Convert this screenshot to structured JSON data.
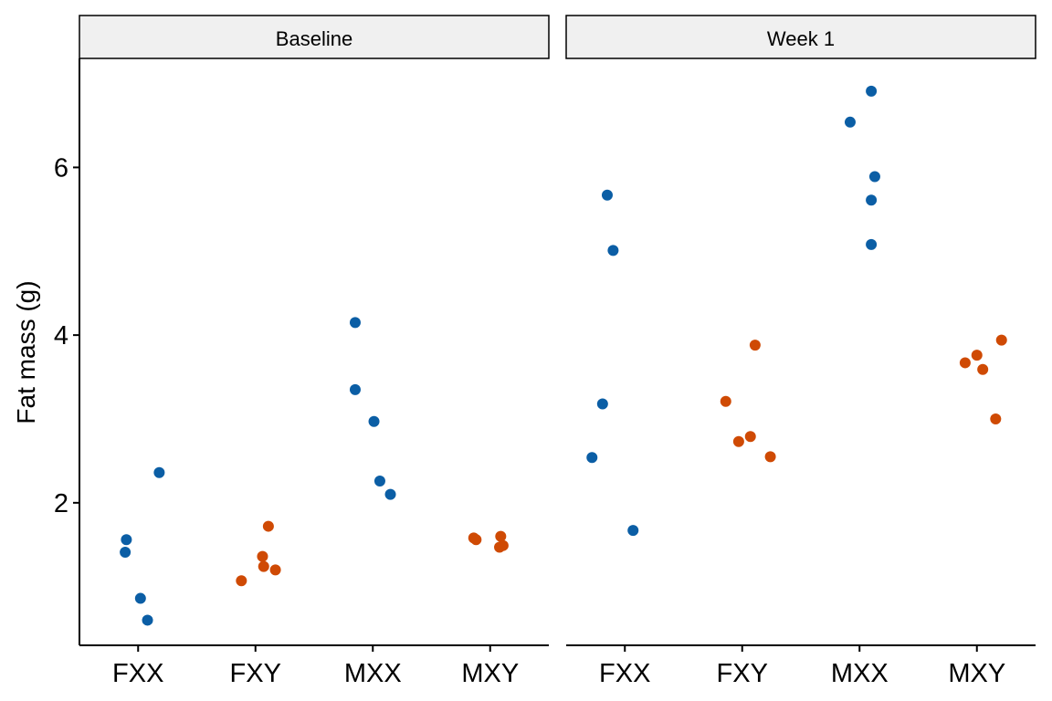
{
  "chart_data": {
    "type": "scatter",
    "ylabel": "Fat mass (g)",
    "xlabel": "",
    "categories": [
      "FXX",
      "FXY",
      "MXX",
      "MXY"
    ],
    "yticks": [
      2,
      4,
      6
    ],
    "ylim": [
      0.3,
      7.3
    ],
    "grid": false,
    "legend": "none",
    "colors": {
      "XX": "#0b5ea5",
      "XY": "#cf4a04"
    },
    "panels": [
      {
        "title": "Baseline",
        "points": [
          {
            "category": "FXX",
            "y": 1.56,
            "offset": -0.1,
            "group": "XX"
          },
          {
            "category": "FXX",
            "y": 1.41,
            "offset": -0.11,
            "group": "XX"
          },
          {
            "category": "FXX",
            "y": 0.86,
            "offset": 0.02,
            "group": "XX"
          },
          {
            "category": "FXX",
            "y": 0.6,
            "offset": 0.08,
            "group": "XX"
          },
          {
            "category": "FXX",
            "y": 2.36,
            "offset": 0.18,
            "group": "XX"
          },
          {
            "category": "FXY",
            "y": 1.72,
            "offset": 0.11,
            "group": "XY"
          },
          {
            "category": "FXY",
            "y": 1.36,
            "offset": 0.06,
            "group": "XY"
          },
          {
            "category": "FXY",
            "y": 1.24,
            "offset": 0.07,
            "group": "XY"
          },
          {
            "category": "FXY",
            "y": 1.2,
            "offset": 0.17,
            "group": "XY"
          },
          {
            "category": "FXY",
            "y": 1.07,
            "offset": -0.12,
            "group": "XY"
          },
          {
            "category": "MXX",
            "y": 4.15,
            "offset": -0.15,
            "group": "XX"
          },
          {
            "category": "MXX",
            "y": 3.35,
            "offset": -0.15,
            "group": "XX"
          },
          {
            "category": "MXX",
            "y": 2.97,
            "offset": 0.01,
            "group": "XX"
          },
          {
            "category": "MXX",
            "y": 2.26,
            "offset": 0.06,
            "group": "XX"
          },
          {
            "category": "MXX",
            "y": 2.1,
            "offset": 0.15,
            "group": "XX"
          },
          {
            "category": "MXY",
            "y": 1.58,
            "offset": -0.14,
            "group": "XY"
          },
          {
            "category": "MXY",
            "y": 1.56,
            "offset": -0.12,
            "group": "XY"
          },
          {
            "category": "MXY",
            "y": 1.6,
            "offset": 0.09,
            "group": "XY"
          },
          {
            "category": "MXY",
            "y": 1.47,
            "offset": 0.08,
            "group": "XY"
          },
          {
            "category": "MXY",
            "y": 1.49,
            "offset": 0.11,
            "group": "XY"
          }
        ]
      },
      {
        "title": "Week 1",
        "points": [
          {
            "category": "FXX",
            "y": 5.67,
            "offset": -0.15,
            "group": "XX"
          },
          {
            "category": "FXX",
            "y": 5.01,
            "offset": -0.1,
            "group": "XX"
          },
          {
            "category": "FXX",
            "y": 3.18,
            "offset": -0.19,
            "group": "XX"
          },
          {
            "category": "FXX",
            "y": 2.54,
            "offset": -0.28,
            "group": "XX"
          },
          {
            "category": "FXX",
            "y": 1.67,
            "offset": 0.07,
            "group": "XX"
          },
          {
            "category": "FXY",
            "y": 3.88,
            "offset": 0.11,
            "group": "XY"
          },
          {
            "category": "FXY",
            "y": 3.21,
            "offset": -0.14,
            "group": "XY"
          },
          {
            "category": "FXY",
            "y": 2.79,
            "offset": 0.07,
            "group": "XY"
          },
          {
            "category": "FXY",
            "y": 2.73,
            "offset": -0.03,
            "group": "XY"
          },
          {
            "category": "FXY",
            "y": 2.55,
            "offset": 0.24,
            "group": "XY"
          },
          {
            "category": "MXX",
            "y": 6.91,
            "offset": 0.1,
            "group": "XX"
          },
          {
            "category": "MXX",
            "y": 6.54,
            "offset": -0.08,
            "group": "XX"
          },
          {
            "category": "MXX",
            "y": 5.89,
            "offset": 0.13,
            "group": "XX"
          },
          {
            "category": "MXX",
            "y": 5.61,
            "offset": 0.1,
            "group": "XX"
          },
          {
            "category": "MXX",
            "y": 5.08,
            "offset": 0.1,
            "group": "XX"
          },
          {
            "category": "MXY",
            "y": 3.94,
            "offset": 0.21,
            "group": "XY"
          },
          {
            "category": "MXY",
            "y": 3.76,
            "offset": 0.0,
            "group": "XY"
          },
          {
            "category": "MXY",
            "y": 3.67,
            "offset": -0.1,
            "group": "XY"
          },
          {
            "category": "MXY",
            "y": 3.59,
            "offset": 0.05,
            "group": "XY"
          },
          {
            "category": "MXY",
            "y": 3.0,
            "offset": 0.16,
            "group": "XY"
          }
        ]
      }
    ]
  }
}
